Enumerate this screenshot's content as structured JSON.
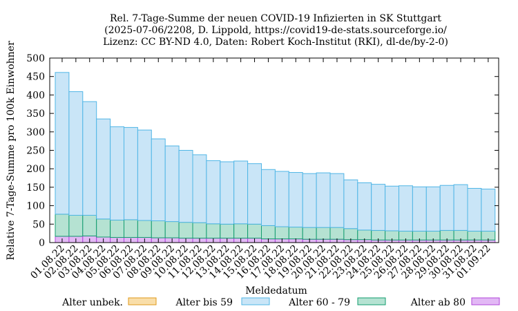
{
  "chart_data": {
    "type": "bar",
    "stacked": true,
    "title_lines": [
      "Rel. 7-Tage-Summe der neuen COVID-19 Infizierten in SK Stuttgart",
      "(2025-07-06/2208, D. Lippold, https://covid19-de-stats.sourceforge.io/",
      "Lizenz: CC BY-ND 4.0, Daten: Robert Koch-Institut (RKI), dl-de/by-2-0)"
    ],
    "xlabel": "Meldedatum",
    "ylabel": "Relative 7-Tage-Summe pro 100k Einwohner",
    "ylim": [
      0,
      500
    ],
    "yticks": [
      0,
      50,
      100,
      150,
      200,
      250,
      300,
      350,
      400,
      450,
      500
    ],
    "grid": false,
    "legend_position": "bottom",
    "categories": [
      "01.08.22",
      "02.08.22",
      "03.08.22",
      "04.08.22",
      "05.08.22",
      "06.08.22",
      "07.08.22",
      "08.08.22",
      "09.08.22",
      "10.08.22",
      "11.08.22",
      "12.08.22",
      "13.08.22",
      "14.08.22",
      "15.08.22",
      "16.08.22",
      "17.08.22",
      "18.08.22",
      "19.08.22",
      "20.08.22",
      "21.08.22",
      "22.08.22",
      "23.08.22",
      "24.08.22",
      "25.08.22",
      "26.08.22",
      "27.08.22",
      "28.08.22",
      "29.08.22",
      "30.08.22",
      "31.08.22",
      "01.09.22"
    ],
    "series": [
      {
        "name": "Alter ab 80",
        "color": "#b044d9",
        "fill": "#e2b8f5",
        "values": [
          17,
          17,
          18,
          15,
          14,
          14,
          14,
          13,
          13,
          12,
          12,
          12,
          12,
          12,
          12,
          10,
          10,
          10,
          9,
          9,
          9,
          8,
          8,
          7,
          7,
          7,
          7,
          7,
          7,
          7,
          7,
          7
        ]
      },
      {
        "name": "Alter 60 - 79",
        "color": "#119c6e",
        "fill": "#b5e2d2",
        "values": [
          60,
          57,
          56,
          49,
          47,
          48,
          46,
          46,
          44,
          43,
          42,
          39,
          38,
          39,
          38,
          36,
          33,
          32,
          32,
          32,
          32,
          30,
          26,
          26,
          25,
          24,
          24,
          24,
          26,
          26,
          24,
          24
        ]
      },
      {
        "name": "Alter bis 59",
        "color": "#50b6e6",
        "fill": "#c9e5f7",
        "values": [
          384,
          335,
          308,
          271,
          253,
          250,
          245,
          222,
          205,
          195,
          184,
          171,
          169,
          170,
          164,
          152,
          150,
          148,
          146,
          148,
          146,
          132,
          128,
          125,
          121,
          123,
          120,
          120,
          122,
          124,
          116,
          114
        ]
      },
      {
        "name": "Alter unbek.",
        "color": "#e09a1a",
        "fill": "#f9dea9",
        "values": [
          0,
          0,
          0,
          0,
          0,
          0,
          0,
          0,
          0,
          0,
          0,
          0,
          0,
          0,
          0,
          0,
          0,
          0,
          0,
          0,
          0,
          0,
          0,
          0,
          0,
          0,
          0,
          0,
          0,
          0,
          0,
          0
        ]
      }
    ],
    "legend": [
      "Alter unbek.",
      "Alter bis 59",
      "Alter 60 - 79",
      "Alter ab 80"
    ]
  }
}
